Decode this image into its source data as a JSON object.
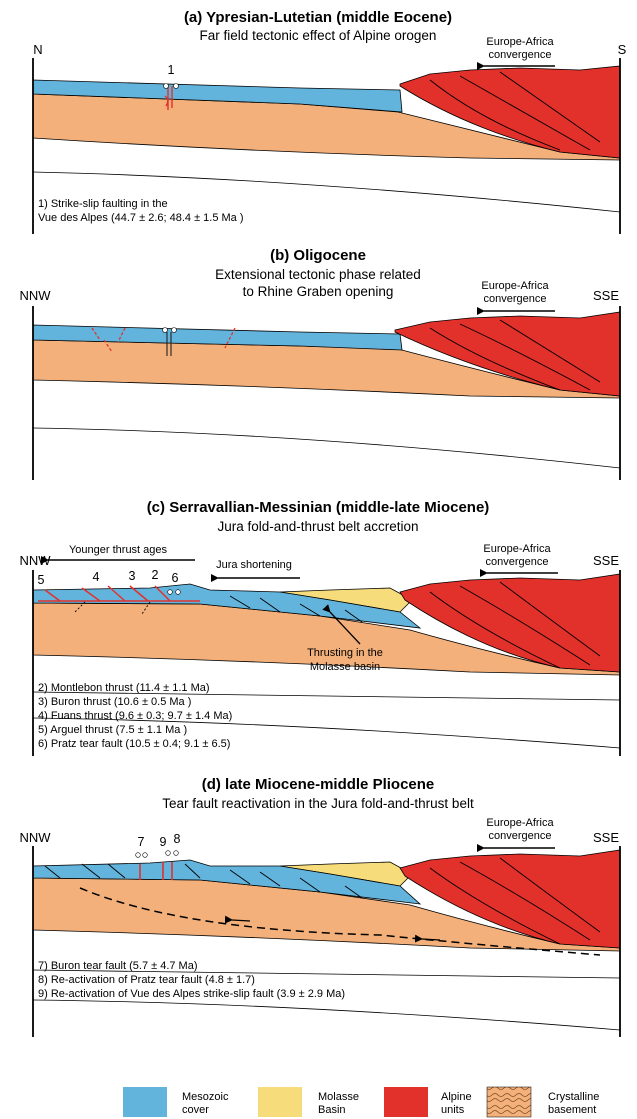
{
  "panels": [
    {
      "title": "(a) Ypresian-Lutetian (middle Eocene)",
      "subtitle": "Far field tectonic effect of Alpine orogen",
      "left_label": "N",
      "right_label": "S",
      "convergence": [
        "Europe-Africa",
        "convergence"
      ],
      "markers": [
        "1"
      ],
      "notes": [
        "1) Strike-slip faulting in the",
        "Vue des Alpes (44.7 ± 2.6; 48.4 ± 1.5 Ma )"
      ]
    },
    {
      "title": "(b) Oligocene",
      "subtitle": [
        "Extensional tectonic phase related",
        "to Rhine Graben opening"
      ],
      "left_label": "NNW",
      "right_label": "SSE",
      "convergence": [
        "Europe-Africa",
        "convergence"
      ]
    },
    {
      "title": "(c) Serravallian-Messinian (middle-late Miocene)",
      "subtitle": "Jura fold-and-thrust belt accretion",
      "left_label": "NNW",
      "right_label": "SSE",
      "convergence": [
        "Europe-Africa",
        "convergence"
      ],
      "younger_label": "Younger thrust ages",
      "shortening_label": "Jura shortening",
      "molasse_label": [
        "Thrusting in the",
        "Molasse basin"
      ],
      "markers": [
        "5",
        "4",
        "3",
        "2",
        "6"
      ],
      "notes": [
        "2) Montlebon thrust (11.4 ± 1.1 Ma)",
        "3) Buron thrust (10.6 ± 0.5 Ma )",
        "4) Fuans thrust (9.6 ± 0.3; 9.7 ± 1.4 Ma)",
        "5) Arguel thrust (7.5 ± 1.1 Ma )",
        "6) Pratz tear fault (10.5 ± 0.4; 9.1 ± 6.5)"
      ]
    },
    {
      "title": "(d) late Miocene-middle Pliocene",
      "subtitle": "Tear fault reactivation in the Jura fold-and-thrust belt",
      "left_label": "NNW",
      "right_label": "SSE",
      "convergence": [
        "Europe-Africa",
        "convergence"
      ],
      "markers": [
        "7",
        "9",
        "8"
      ],
      "notes": [
        "7) Buron tear fault (5.7 ± 4.7 Ma)",
        "8) Re-activation of Pratz tear fault (4.8 ± 1.7)",
        "9) Re-activation of Vue des Alpes strike-slip fault (3.9 ± 2.9 Ma)"
      ]
    }
  ],
  "legend": [
    {
      "label": [
        "Mesozoic",
        "cover"
      ],
      "color": "#62b4dd"
    },
    {
      "label": [
        "Molasse",
        "Basin"
      ],
      "color": "#f6dc7a"
    },
    {
      "label": [
        "Alpine",
        "units"
      ],
      "color": "#e2312b"
    },
    {
      "label": [
        "Crystalline",
        "basement"
      ],
      "color": "#f3b07a"
    }
  ],
  "colors": {
    "mesozoic": "#62b4dd",
    "molasse": "#f6dc7a",
    "alpine": "#e2312b",
    "basement": "#f3b07a",
    "fault": "#e2312b"
  }
}
